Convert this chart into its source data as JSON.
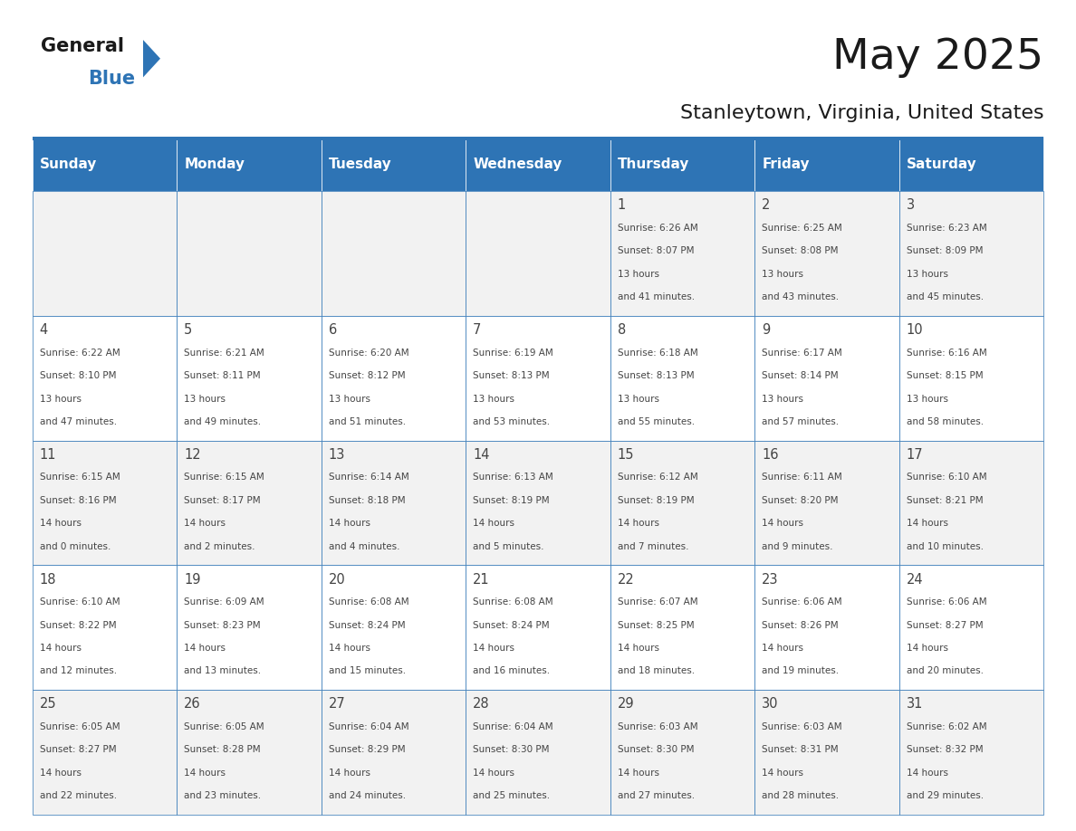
{
  "title": "May 2025",
  "subtitle": "Stanleytown, Virginia, United States",
  "header_bg": "#2E74B5",
  "header_text_color": "#FFFFFF",
  "day_names": [
    "Sunday",
    "Monday",
    "Tuesday",
    "Wednesday",
    "Thursday",
    "Friday",
    "Saturday"
  ],
  "cell_bg_even": "#F2F2F2",
  "cell_bg_odd": "#FFFFFF",
  "cell_border_color": "#2E74B5",
  "text_color": "#444444",
  "title_color": "#1a1a1a",
  "logo_text_color": "#1a1a1a",
  "logo_blue_color": "#2E74B5",
  "days": [
    {
      "day": 1,
      "col": 4,
      "row": 0,
      "sunrise": "6:26 AM",
      "sunset": "8:07 PM",
      "daylight": "13 hours and 41 minutes."
    },
    {
      "day": 2,
      "col": 5,
      "row": 0,
      "sunrise": "6:25 AM",
      "sunset": "8:08 PM",
      "daylight": "13 hours and 43 minutes."
    },
    {
      "day": 3,
      "col": 6,
      "row": 0,
      "sunrise": "6:23 AM",
      "sunset": "8:09 PM",
      "daylight": "13 hours and 45 minutes."
    },
    {
      "day": 4,
      "col": 0,
      "row": 1,
      "sunrise": "6:22 AM",
      "sunset": "8:10 PM",
      "daylight": "13 hours and 47 minutes."
    },
    {
      "day": 5,
      "col": 1,
      "row": 1,
      "sunrise": "6:21 AM",
      "sunset": "8:11 PM",
      "daylight": "13 hours and 49 minutes."
    },
    {
      "day": 6,
      "col": 2,
      "row": 1,
      "sunrise": "6:20 AM",
      "sunset": "8:12 PM",
      "daylight": "13 hours and 51 minutes."
    },
    {
      "day": 7,
      "col": 3,
      "row": 1,
      "sunrise": "6:19 AM",
      "sunset": "8:13 PM",
      "daylight": "13 hours and 53 minutes."
    },
    {
      "day": 8,
      "col": 4,
      "row": 1,
      "sunrise": "6:18 AM",
      "sunset": "8:13 PM",
      "daylight": "13 hours and 55 minutes."
    },
    {
      "day": 9,
      "col": 5,
      "row": 1,
      "sunrise": "6:17 AM",
      "sunset": "8:14 PM",
      "daylight": "13 hours and 57 minutes."
    },
    {
      "day": 10,
      "col": 6,
      "row": 1,
      "sunrise": "6:16 AM",
      "sunset": "8:15 PM",
      "daylight": "13 hours and 58 minutes."
    },
    {
      "day": 11,
      "col": 0,
      "row": 2,
      "sunrise": "6:15 AM",
      "sunset": "8:16 PM",
      "daylight": "14 hours and 0 minutes."
    },
    {
      "day": 12,
      "col": 1,
      "row": 2,
      "sunrise": "6:15 AM",
      "sunset": "8:17 PM",
      "daylight": "14 hours and 2 minutes."
    },
    {
      "day": 13,
      "col": 2,
      "row": 2,
      "sunrise": "6:14 AM",
      "sunset": "8:18 PM",
      "daylight": "14 hours and 4 minutes."
    },
    {
      "day": 14,
      "col": 3,
      "row": 2,
      "sunrise": "6:13 AM",
      "sunset": "8:19 PM",
      "daylight": "14 hours and 5 minutes."
    },
    {
      "day": 15,
      "col": 4,
      "row": 2,
      "sunrise": "6:12 AM",
      "sunset": "8:19 PM",
      "daylight": "14 hours and 7 minutes."
    },
    {
      "day": 16,
      "col": 5,
      "row": 2,
      "sunrise": "6:11 AM",
      "sunset": "8:20 PM",
      "daylight": "14 hours and 9 minutes."
    },
    {
      "day": 17,
      "col": 6,
      "row": 2,
      "sunrise": "6:10 AM",
      "sunset": "8:21 PM",
      "daylight": "14 hours and 10 minutes."
    },
    {
      "day": 18,
      "col": 0,
      "row": 3,
      "sunrise": "6:10 AM",
      "sunset": "8:22 PM",
      "daylight": "14 hours and 12 minutes."
    },
    {
      "day": 19,
      "col": 1,
      "row": 3,
      "sunrise": "6:09 AM",
      "sunset": "8:23 PM",
      "daylight": "14 hours and 13 minutes."
    },
    {
      "day": 20,
      "col": 2,
      "row": 3,
      "sunrise": "6:08 AM",
      "sunset": "8:24 PM",
      "daylight": "14 hours and 15 minutes."
    },
    {
      "day": 21,
      "col": 3,
      "row": 3,
      "sunrise": "6:08 AM",
      "sunset": "8:24 PM",
      "daylight": "14 hours and 16 minutes."
    },
    {
      "day": 22,
      "col": 4,
      "row": 3,
      "sunrise": "6:07 AM",
      "sunset": "8:25 PM",
      "daylight": "14 hours and 18 minutes."
    },
    {
      "day": 23,
      "col": 5,
      "row": 3,
      "sunrise": "6:06 AM",
      "sunset": "8:26 PM",
      "daylight": "14 hours and 19 minutes."
    },
    {
      "day": 24,
      "col": 6,
      "row": 3,
      "sunrise": "6:06 AM",
      "sunset": "8:27 PM",
      "daylight": "14 hours and 20 minutes."
    },
    {
      "day": 25,
      "col": 0,
      "row": 4,
      "sunrise": "6:05 AM",
      "sunset": "8:27 PM",
      "daylight": "14 hours and 22 minutes."
    },
    {
      "day": 26,
      "col": 1,
      "row": 4,
      "sunrise": "6:05 AM",
      "sunset": "8:28 PM",
      "daylight": "14 hours and 23 minutes."
    },
    {
      "day": 27,
      "col": 2,
      "row": 4,
      "sunrise": "6:04 AM",
      "sunset": "8:29 PM",
      "daylight": "14 hours and 24 minutes."
    },
    {
      "day": 28,
      "col": 3,
      "row": 4,
      "sunrise": "6:04 AM",
      "sunset": "8:30 PM",
      "daylight": "14 hours and 25 minutes."
    },
    {
      "day": 29,
      "col": 4,
      "row": 4,
      "sunrise": "6:03 AM",
      "sunset": "8:30 PM",
      "daylight": "14 hours and 27 minutes."
    },
    {
      "day": 30,
      "col": 5,
      "row": 4,
      "sunrise": "6:03 AM",
      "sunset": "8:31 PM",
      "daylight": "14 hours and 28 minutes."
    },
    {
      "day": 31,
      "col": 6,
      "row": 4,
      "sunrise": "6:02 AM",
      "sunset": "8:32 PM",
      "daylight": "14 hours and 29 minutes."
    }
  ]
}
